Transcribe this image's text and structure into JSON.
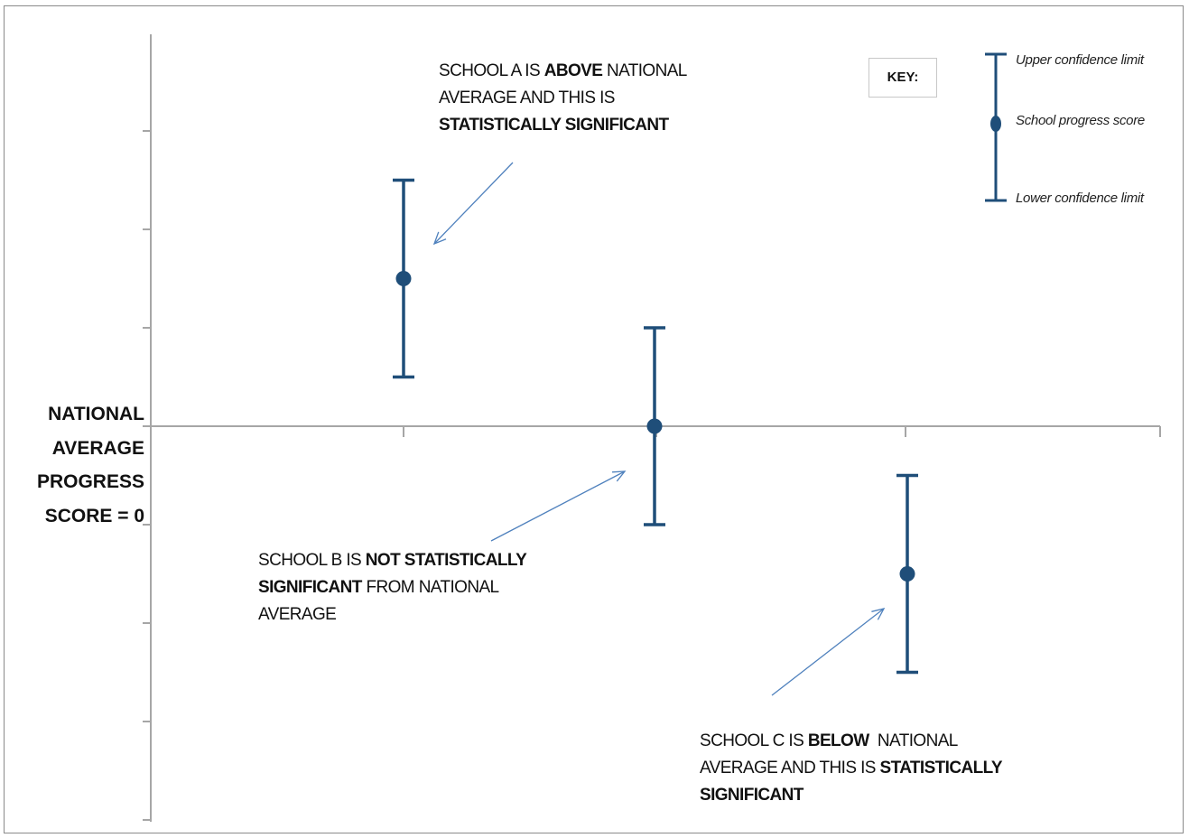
{
  "chart_data": {
    "type": "scatter",
    "subtype": "error-bar",
    "ylabel_lines": [
      "NATIONAL",
      "AVERAGE",
      "PROGRESS",
      "SCORE = 0"
    ],
    "reference_line_y": 0,
    "y_tick_labels": "none",
    "colors": {
      "marker": "#1f4e79",
      "axis": "#a6a6a6",
      "arrow": "#4f81bd"
    },
    "points": [
      {
        "name": "School A",
        "score": 1.5,
        "lower": 0.5,
        "upper": 2.5
      },
      {
        "name": "School B",
        "score": 0.0,
        "lower": -1.0,
        "upper": 1.0
      },
      {
        "name": "School C",
        "score": -1.5,
        "lower": -2.5,
        "upper": -0.5
      }
    ],
    "ylim": [
      -4.0,
      4.0
    ],
    "annotations": [
      {
        "target": "School A",
        "lines": [
          [
            {
              "t": "SCHOOL A IS ",
              "b": false
            },
            {
              "t": "ABOVE",
              "b": true
            },
            {
              "t": " NATIONAL",
              "b": false
            }
          ],
          [
            {
              "t": "AVERAGE AND THIS IS",
              "b": false
            }
          ],
          [
            {
              "t": "STATISTICALLY SIGNIFICANT",
              "b": true
            }
          ]
        ]
      },
      {
        "target": "School B",
        "lines": [
          [
            {
              "t": "SCHOOL B IS ",
              "b": false
            },
            {
              "t": "NOT STATISTICALLY",
              "b": true
            }
          ],
          [
            {
              "t": "SIGNIFICANT",
              "b": true
            },
            {
              "t": " FROM NATIONAL",
              "b": false
            }
          ],
          [
            {
              "t": "AVERAGE",
              "b": false
            }
          ]
        ]
      },
      {
        "target": "School C",
        "lines": [
          [
            {
              "t": "SCHOOL C IS ",
              "b": false
            },
            {
              "t": "BELOW",
              "b": true
            },
            {
              "t": "  NATIONAL",
              "b": false
            }
          ],
          [
            {
              "t": "AVERAGE AND THIS IS ",
              "b": false
            },
            {
              "t": "STATISTICALLY",
              "b": true
            }
          ],
          [
            {
              "t": "SIGNIFICANT",
              "b": true
            }
          ]
        ]
      }
    ],
    "key": {
      "title": "KEY:",
      "upper": "Upper confidence limit",
      "score": "School progress score",
      "lower": "Lower confidence limit"
    }
  }
}
